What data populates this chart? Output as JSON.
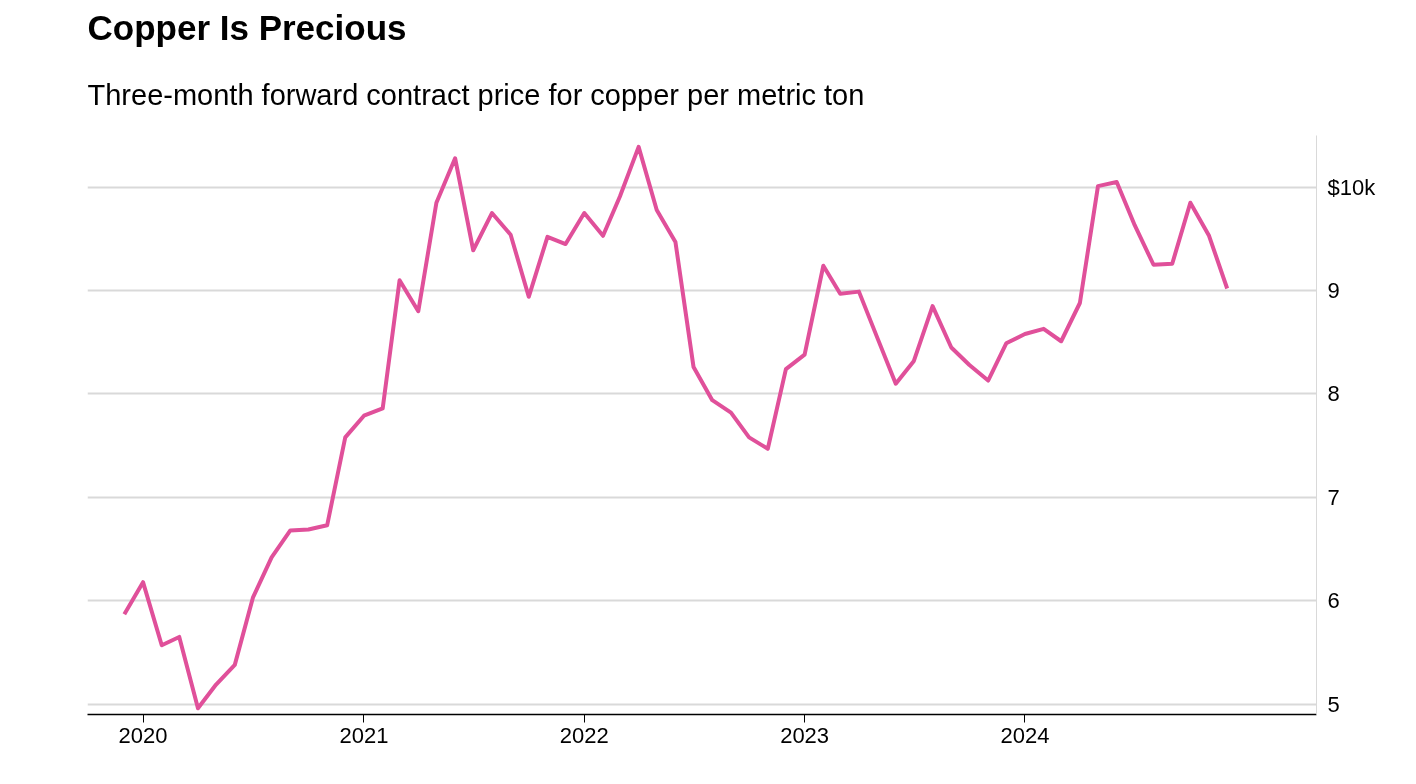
{
  "chart_data": {
    "type": "line",
    "title": "Copper Is Precious",
    "subtitle": "Three-month forward contract price for copper per metric ton",
    "x": [
      "2019-12",
      "2020-01",
      "2020-02",
      "2020-03",
      "2020-04",
      "2020-05",
      "2020-06",
      "2020-07",
      "2020-08",
      "2020-09",
      "2020-10",
      "2020-11",
      "2020-12",
      "2021-01",
      "2021-02",
      "2021-03",
      "2021-04",
      "2021-05",
      "2021-06",
      "2021-07",
      "2021-08",
      "2021-09",
      "2021-10",
      "2021-11",
      "2021-12",
      "2022-01",
      "2022-02",
      "2022-03",
      "2022-04",
      "2022-05",
      "2022-06",
      "2022-07",
      "2022-08",
      "2022-09",
      "2022-10",
      "2022-11",
      "2022-12",
      "2023-01",
      "2023-02",
      "2023-03",
      "2023-04",
      "2023-05",
      "2023-06",
      "2023-07",
      "2023-08",
      "2023-09",
      "2023-10",
      "2023-11",
      "2023-12",
      "2024-01",
      "2024-02",
      "2024-03",
      "2024-04",
      "2024-05",
      "2024-06",
      "2024-07",
      "2024-08",
      "2024-09",
      "2024-10",
      "2024-11",
      "2024-12"
    ],
    "series": [
      {
        "color": "#e0509a",
        "values": [
          5.87,
          6.18,
          5.57,
          5.65,
          4.96,
          5.19,
          5.38,
          6.03,
          6.42,
          6.68,
          6.69,
          6.73,
          7.58,
          7.79,
          7.86,
          9.1,
          8.8,
          9.85,
          10.28,
          9.39,
          9.75,
          9.54,
          8.94,
          9.52,
          9.45,
          9.75,
          9.53,
          9.91,
          10.39,
          9.78,
          9.47,
          8.26,
          7.94,
          7.82,
          7.58,
          7.47,
          8.24,
          8.38,
          9.24,
          8.97,
          8.99,
          8.55,
          8.1,
          8.32,
          8.85,
          8.45,
          8.28,
          8.13,
          8.49,
          8.58,
          8.63,
          8.51,
          8.88,
          10.01,
          10.05,
          9.63,
          9.25,
          9.26,
          9.85,
          9.53,
          9.02
        ]
      }
    ],
    "xlim": [
      "2019-10-01",
      "2025-04-28"
    ],
    "xticks": [
      "2020",
      "2021",
      "2022",
      "2023",
      "2024"
    ],
    "ylim": [
      4.9,
      10.5
    ],
    "yticks": [
      5,
      6,
      7,
      8,
      9,
      {
        "value": 10,
        "label": "$10k"
      }
    ],
    "grid": "y"
  }
}
